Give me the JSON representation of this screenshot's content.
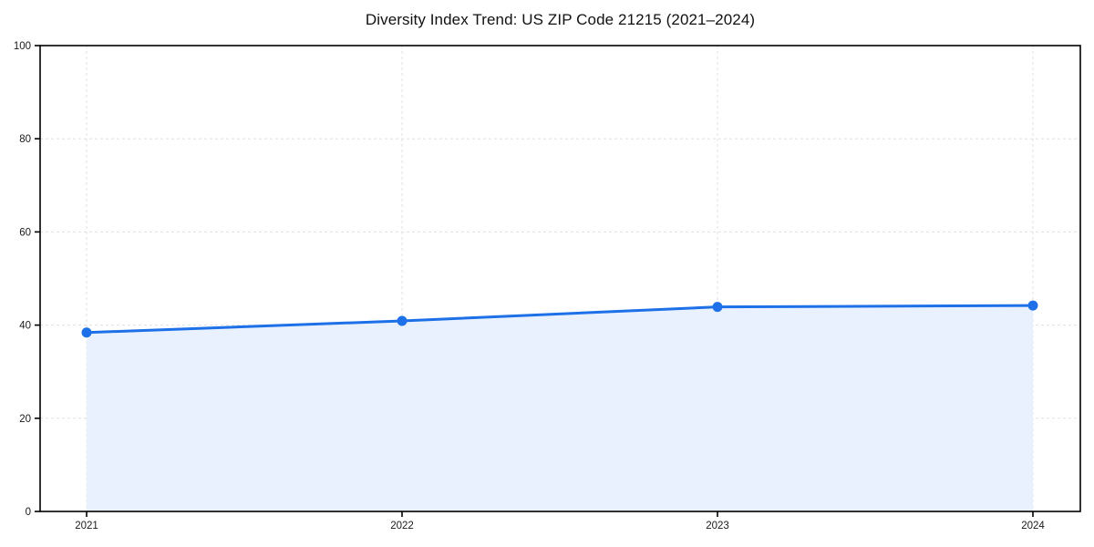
{
  "figure": {
    "title": "Diversity Index Trend: US ZIP Code 21215 (2021–2024)"
  },
  "chart_data": {
    "type": "line",
    "title": "Diversity Index Trend: US ZIP Code 21215 (2021–2024)",
    "x": [
      "2021",
      "2022",
      "2023",
      "2024"
    ],
    "series": [
      {
        "name": "Diversity Index",
        "values": [
          38.4,
          40.9,
          43.9,
          44.2
        ]
      }
    ],
    "xlabel": "",
    "ylabel": "",
    "ylim": [
      0,
      100
    ],
    "yticks": [
      0,
      20,
      40,
      60,
      80,
      100
    ],
    "grid": "dashed, both axes",
    "legend": "none",
    "area_fill": true,
    "marker": "circle",
    "colors": {
      "line": "#1d70e8",
      "marker": "#1d70e8",
      "fill": "#e8f1fd",
      "gridline": "#e0e0e0",
      "spine": "#000000",
      "tick_label": "#1a1a1a",
      "title": "#111111"
    }
  }
}
